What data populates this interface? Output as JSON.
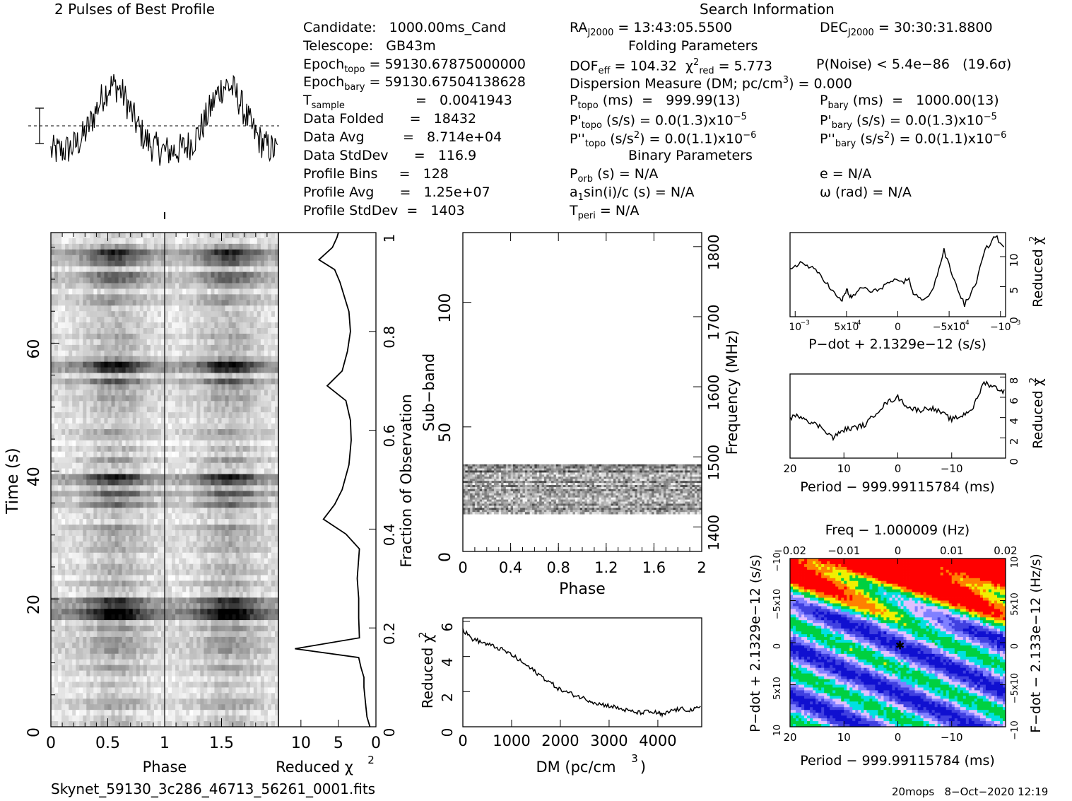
{
  "header": {
    "profile_title": "2 Pulses of Best Profile",
    "search_title": "Search Information",
    "folding_title": "Folding Parameters",
    "binary_title": "Binary Parameters"
  },
  "col1": {
    "candidate": "Candidate:   1000.00ms_Cand",
    "telescope": "Telescope:   GB43m",
    "epoch_topo": "Epoch",
    "epoch_topo_sub": "topo",
    "epoch_topo_val": " = 59130.67875000000",
    "epoch_bary": "Epoch",
    "epoch_bary_sub": "bary",
    "epoch_bary_val": " = 59130.67504138628",
    "t_sample": "T",
    "t_sample_sub": "sample",
    "t_sample_val": "=   0.0041943",
    "data_folded": "Data Folded      =   18432",
    "data_avg": "Data Avg         =   8.714e+04",
    "data_std": "Data StdDev      =   116.9",
    "profile_bins": "Profile Bins     =   128",
    "profile_avg": "Profile Avg      =   1.25e+07",
    "profile_std": "Profile StdDev  =   1403"
  },
  "col2": {
    "ra": "RA",
    "ra_sub": "J2000",
    "ra_val": " = 13:43:05.5500",
    "dof": "DOF",
    "dof_sub": "eff",
    "dof_val": " = 104.32  χ",
    "chi_sup": "2",
    "chi_sub": "red",
    "chi_val": " = 5.773",
    "dm": "Dispersion Measure (DM; pc/cm",
    "dm_sup": "3",
    "dm_val": ") = 0.000",
    "ptopo": "P",
    "ptopo_sub": "topo",
    "ptopo_val": " (ms)  =   999.99(13)",
    "pdtopo": "P'",
    "pdtopo_sub": "topo",
    "pdtopo_val": " (s/s) = 0.0(1.3)x10",
    "pdtopo_exp": "−5",
    "pddtopo": "P''",
    "pddtopo_sub": "topo",
    "pddtopo_val": " (s/s",
    "pddtopo_sup": "2",
    "pddtopo_val2": ") = 0.0(1.1)x10",
    "pddtopo_exp": "−6",
    "porb": "P",
    "porb_sub": "orb",
    "porb_val": " (s) = N/A",
    "a1": "a",
    "a1_sub": "1",
    "a1_val": "sin(i)/c (s) = N/A",
    "tperi": "T",
    "tperi_sub": "peri",
    "tperi_val": " = N/A"
  },
  "col3": {
    "dec": "DEC",
    "dec_sub": "J2000",
    "dec_val": " = 30:30:31.8800",
    "pnoise": "P(Noise) < 5.4e−86   (19.6σ)",
    "pbary": "P",
    "pbary_sub": "bary",
    "pbary_val": " (ms)  =   1000.00(13)",
    "pdbary": "P'",
    "pdbary_sub": "bary",
    "pdbary_val": " (s/s) = 0.0(1.3)x10",
    "pdbary_exp": "−5",
    "pddbary": "P''",
    "pddbary_sub": "bary",
    "pddbary_val": " (s/s",
    "pddbary_sup": "2",
    "pddbary_val2": ") = 0.0(1.1)x10",
    "pddbary_exp": "−6",
    "ecc": "e = N/A",
    "omega": "ω (rad) = N/A"
  },
  "footer": {
    "filename": "Skynet_59130_3c286_46713_56261_0001.fits",
    "stamp": "20mops   8−Oct−2020 12:19"
  },
  "chart_data": [
    {
      "name": "profile",
      "type": "line",
      "title": "2 Pulses of Best Profile",
      "x_range": [
        0,
        2
      ],
      "description_values": {
        "bins": 128,
        "pulses": 2
      }
    },
    {
      "name": "time_phase",
      "type": "heatmap",
      "xlabel": "Phase",
      "ylabel": "Time (s)",
      "x_ticks": [
        "0",
        "0.5",
        "1",
        "1.5"
      ],
      "y_ticks": [
        "0",
        "20",
        "40",
        "60"
      ],
      "xlim": [
        0,
        2
      ],
      "ylim": [
        0,
        77.3
      ]
    },
    {
      "name": "time_chi2",
      "type": "line",
      "xlabel": "Reduced χ",
      "xlabel_sup": "2",
      "ylabel_right": "Fraction of Observation",
      "x_ticks": [
        "10",
        "5",
        "0"
      ],
      "y_ticks_right": [
        "0",
        "0.2",
        "0.4",
        "0.6",
        "0.8",
        "1"
      ],
      "xlim": [
        13,
        0
      ],
      "points": [
        [
          0.8,
          0.0
        ],
        [
          1.2,
          0.02
        ],
        [
          1.4,
          0.05
        ],
        [
          1.6,
          0.08
        ],
        [
          1.6,
          0.1
        ],
        [
          2.0,
          0.12
        ],
        [
          2.3,
          0.14
        ],
        [
          10.8,
          0.158
        ],
        [
          2.2,
          0.18
        ],
        [
          2.3,
          0.22
        ],
        [
          2.3,
          0.26
        ],
        [
          2.5,
          0.3
        ],
        [
          2.2,
          0.36
        ],
        [
          4.0,
          0.39
        ],
        [
          7.0,
          0.42
        ],
        [
          5.5,
          0.45
        ],
        [
          4.5,
          0.48
        ],
        [
          3.6,
          0.53
        ],
        [
          3.3,
          0.58
        ],
        [
          3.4,
          0.62
        ],
        [
          4.0,
          0.66
        ],
        [
          6.5,
          0.69
        ],
        [
          4.5,
          0.72
        ],
        [
          3.8,
          0.76
        ],
        [
          3.4,
          0.8
        ],
        [
          3.6,
          0.84
        ],
        [
          4.2,
          0.87
        ],
        [
          4.8,
          0.9
        ],
        [
          5.5,
          0.925
        ],
        [
          7.6,
          0.945
        ],
        [
          5.8,
          0.97
        ],
        [
          5.2,
          0.99
        ],
        [
          5.0,
          1.0
        ]
      ]
    },
    {
      "name": "subband_phase",
      "type": "heatmap",
      "xlabel": "Phase",
      "ylabel": "Sub−band",
      "ylabel_right": "Frequency (MHz)",
      "x_ticks": [
        "0",
        "0.4",
        "0.8",
        "1.2",
        "1.6",
        "2"
      ],
      "y_ticks": [
        "0",
        "50",
        "100"
      ],
      "y_ticks_right": [
        "1400",
        "1500",
        "1600",
        "1700",
        "1800"
      ],
      "xlim": [
        0,
        2
      ],
      "ylim": [
        0,
        128
      ],
      "active_subbands": [
        15,
        35
      ]
    },
    {
      "name": "dm_chi2",
      "type": "line",
      "xlabel": "DM (pc/cm",
      "xlabel_sup": "3",
      "xlabel_end": ")",
      "ylabel": "Reduced χ",
      "ylabel_sup": "2",
      "x_ticks": [
        "0",
        "1000",
        "2000",
        "3000",
        "4000"
      ],
      "y_ticks": [
        "0",
        "2",
        "4",
        "6"
      ],
      "xlim": [
        0,
        4900
      ],
      "ylim": [
        0,
        6.2
      ],
      "points": [
        [
          0,
          5.5
        ],
        [
          200,
          5.0
        ],
        [
          400,
          4.8
        ],
        [
          600,
          4.6
        ],
        [
          800,
          4.4
        ],
        [
          1000,
          4.1
        ],
        [
          1200,
          3.7
        ],
        [
          1400,
          3.3
        ],
        [
          1600,
          2.9
        ],
        [
          1800,
          2.5
        ],
        [
          2000,
          2.1
        ],
        [
          2200,
          1.9
        ],
        [
          2400,
          1.7
        ],
        [
          2600,
          1.5
        ],
        [
          2800,
          1.3
        ],
        [
          3000,
          1.2
        ],
        [
          3200,
          1.05
        ],
        [
          3400,
          0.9
        ],
        [
          3600,
          0.8
        ],
        [
          3800,
          0.85
        ],
        [
          4000,
          0.8
        ],
        [
          4100,
          0.65
        ],
        [
          4300,
          0.95
        ],
        [
          4500,
          1.0
        ],
        [
          4700,
          0.95
        ],
        [
          4900,
          1.1
        ]
      ]
    },
    {
      "name": "pdot_chi2",
      "type": "line",
      "xlabel": "P−dot + 2.1329e−12 (s/s)",
      "ylabel_right": "Reduced χ",
      "ylabel_right_sup": "2",
      "x_ticks": [
        "10",
        "5x10",
        "0",
        "−5x10",
        "−10"
      ],
      "y_ticks": [
        "0",
        "5",
        "10"
      ],
      "xlim": [
        0.00105,
        -0.00105
      ],
      "ylim": [
        0,
        14
      ],
      "points": [
        [
          0.00105,
          8
        ],
        [
          0.00095,
          9
        ],
        [
          0.00085,
          8.2
        ],
        [
          0.00075,
          7
        ],
        [
          0.00065,
          4.5
        ],
        [
          0.00055,
          2.5
        ],
        [
          0.0005,
          4.5
        ],
        [
          0.00045,
          3
        ],
        [
          0.00035,
          5
        ],
        [
          0.00025,
          4
        ],
        [
          0.00015,
          5
        ],
        [
          5e-05,
          6
        ],
        [
          -5e-05,
          5.5
        ],
        [
          -0.0001,
          6.5
        ],
        [
          -0.00015,
          4
        ],
        [
          -0.00025,
          2.5
        ],
        [
          -0.00035,
          5
        ],
        [
          -0.00045,
          11
        ],
        [
          -0.00055,
          6
        ],
        [
          -0.00065,
          2
        ],
        [
          -0.00075,
          5
        ],
        [
          -0.00085,
          11
        ],
        [
          -0.00095,
          13.5
        ],
        [
          -0.00105,
          11
        ]
      ]
    },
    {
      "name": "period_chi2",
      "type": "line",
      "xlabel": "Period − 999.99115784 (ms)",
      "ylabel_right": "Reduced χ",
      "ylabel_right_sup": "2",
      "x_ticks": [
        "20",
        "10",
        "0",
        "−10"
      ],
      "y_ticks": [
        "0",
        "2",
        "4",
        "6",
        "8"
      ],
      "xlim": [
        20,
        -20
      ],
      "ylim": [
        0,
        8.3
      ],
      "points": [
        [
          20,
          4
        ],
        [
          18,
          4.2
        ],
        [
          16,
          3.5
        ],
        [
          14,
          3
        ],
        [
          12,
          2
        ],
        [
          10,
          2.8
        ],
        [
          8,
          3
        ],
        [
          6,
          3.3
        ],
        [
          4,
          4.5
        ],
        [
          2,
          5.5
        ],
        [
          0,
          6
        ],
        [
          -2,
          5
        ],
        [
          -4,
          4.7
        ],
        [
          -6,
          5
        ],
        [
          -8,
          4.5
        ],
        [
          -10,
          3.8
        ],
        [
          -12,
          4.2
        ],
        [
          -14,
          5
        ],
        [
          -16,
          7.5
        ],
        [
          -18,
          7
        ],
        [
          -20,
          6.5
        ]
      ]
    },
    {
      "name": "p_pdot_plane",
      "type": "heatmap",
      "title": "Freq − 1.000009 (Hz)",
      "xlabel": "Period − 999.99115784 (ms)",
      "ylabel": "P−dot + 2.1329e−12 (s/s)",
      "ylabel_right": "F−dot − 2.133e−12 (Hz/s)",
      "x_ticks": [
        "20",
        "10",
        "0",
        "−10"
      ],
      "x_ticks_top": [
        "−0.02",
        "−0.01",
        "0",
        "0.01",
        "0.02"
      ],
      "y_ticks": [
        "10",
        "5x10",
        "0",
        "−5x10",
        "−10"
      ],
      "y_ticks_right": [
        "−10",
        "−5x10",
        "0",
        "5x10",
        "10"
      ],
      "colors": [
        "#1010d0",
        "#4040e0",
        "#8080ff",
        "#e0c0ff",
        "#00e0e0",
        "#00d040",
        "#f0f000",
        "#ff8000",
        "#ff0000"
      ]
    }
  ]
}
